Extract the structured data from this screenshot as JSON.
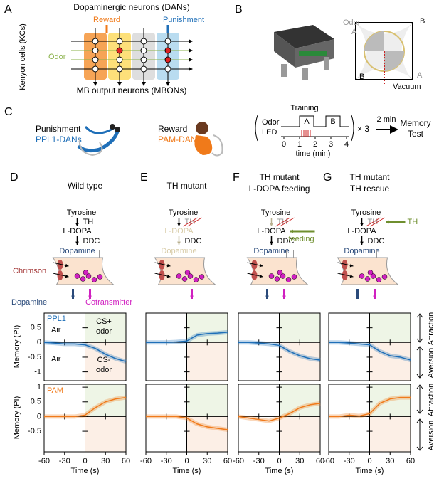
{
  "panels": [
    "A",
    "B",
    "C",
    "D",
    "E",
    "F",
    "G"
  ],
  "a": {
    "title": "Dopaminergic neurons (DANs)",
    "reward": "Reward",
    "punishment": "Punishment",
    "kcs": "Kenyon cells (KCs)",
    "odor": "Odor",
    "mbons": "MB output neurons (MBONs)"
  },
  "b": {
    "odor": "Odor",
    "a1": "A",
    "b1": "B",
    "b2": "B",
    "a2": "A",
    "vacuum": "Vacuum"
  },
  "c": {
    "punishment": "Punishment",
    "ppl1": "PPL1-DANs",
    "reward": "Reward",
    "pam": "PAM-DANs",
    "training": "Training",
    "odor": "Odor",
    "led": "LED",
    "a": "A",
    "b": "B",
    "times": [
      0,
      1,
      2,
      3,
      4
    ],
    "time_label": "time (min)",
    "repeat": "× 3",
    "interval": "2 min",
    "memory": "Memory",
    "test": "Test"
  },
  "columns": [
    {
      "title": [
        "Wild type"
      ],
      "tyrosine": "Tyrosine",
      "th": "TH",
      "ldopa": "L-DOPA",
      "ddc": "DDC",
      "dopamine": "Dopamine"
    },
    {
      "title": [
        "TH mutant"
      ],
      "tyrosine": "Tyrosine",
      "th": "TH",
      "ldopa": "L-DOPA",
      "ddc": "DDC",
      "dopamine": "Dopamine"
    },
    {
      "title": [
        "TH mutant",
        "L-DOPA feeding"
      ],
      "tyrosine": "Tyrosine",
      "th": "TH",
      "ldopa": "L-DOPA",
      "ddc": "DDC",
      "dopamine": "Dopamine",
      "extra": "feeding"
    },
    {
      "title": [
        "TH mutant",
        "TH rescue"
      ],
      "tyrosine": "Tyrosine",
      "th": "TH",
      "ldopa": "L-DOPA",
      "ddc": "DDC",
      "dopamine": "Dopamine",
      "extra": "TH"
    }
  ],
  "cell": {
    "chrimson": "Chrimson",
    "dopamine": "Dopamine",
    "cotransmitter": "Cotransmitter"
  },
  "plot_text": {
    "ppl1": "PPL1",
    "pam": "PAM",
    "air": [
      "Air",
      "Air"
    ],
    "cs_plus": "CS+",
    "cs_minus": "CS-",
    "odor": [
      "odor",
      "odor"
    ]
  },
  "axes": {
    "ylabel": "Memory (PI)",
    "xlabel": "Time (s)",
    "attraction": "Attraction",
    "aversion": "Aversion",
    "xlim": [
      -60,
      60
    ],
    "xticks": [
      -60,
      -30,
      0,
      30,
      60
    ],
    "top_ylim": [
      -1.3,
      1.0
    ],
    "top_yticks": [
      0.5,
      0,
      -0.5,
      -1
    ],
    "bottom_ylim": [
      -1.2,
      1.1
    ],
    "bottom_yticks": [
      1,
      0.5,
      0,
      -0.5
    ]
  },
  "traces": {
    "x": [
      -60,
      -45,
      -30,
      -15,
      0,
      15,
      30,
      45,
      60
    ],
    "top": [
      {
        "color": "#1f6fb8",
        "values": [
          0,
          -0.02,
          -0.05,
          -0.05,
          -0.08,
          -0.2,
          -0.4,
          -0.55,
          -0.65
        ]
      },
      {
        "color": "#1f6fb8",
        "values": [
          0,
          0,
          0,
          0.02,
          0.05,
          0.25,
          0.3,
          0.32,
          0.35
        ]
      },
      {
        "color": "#1f6fb8",
        "values": [
          0,
          0,
          -0.02,
          -0.05,
          -0.1,
          -0.3,
          -0.45,
          -0.55,
          -0.6
        ]
      },
      {
        "color": "#1f6fb8",
        "values": [
          0,
          0,
          -0.02,
          -0.05,
          -0.08,
          -0.3,
          -0.45,
          -0.5,
          -0.6
        ]
      }
    ],
    "bottom": [
      {
        "color": "#f07a1a",
        "values": [
          0,
          0,
          0,
          0,
          0.05,
          0.3,
          0.5,
          0.6,
          0.65
        ]
      },
      {
        "color": "#f07a1a",
        "values": [
          0,
          0,
          0,
          0,
          -0.05,
          -0.25,
          -0.35,
          -0.4,
          -0.45
        ]
      },
      {
        "color": "#f07a1a",
        "values": [
          0,
          -0.05,
          -0.1,
          -0.15,
          -0.05,
          0.1,
          0.3,
          0.4,
          0.45
        ]
      },
      {
        "color": "#f07a1a",
        "values": [
          0,
          0,
          0.05,
          0.02,
          0.1,
          0.45,
          0.6,
          0.65,
          0.65
        ]
      }
    ]
  }
}
